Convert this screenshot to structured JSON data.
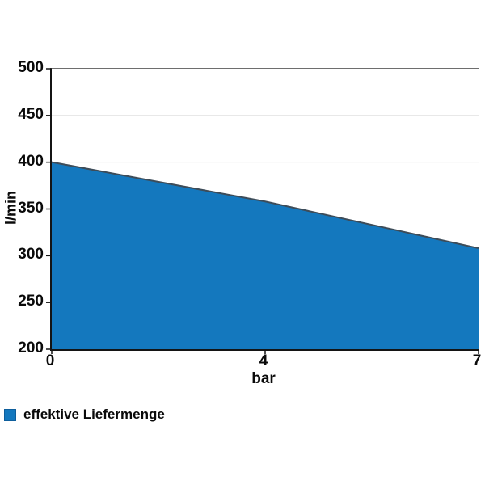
{
  "chart_data": {
    "type": "area",
    "title": "",
    "xlabel": "bar",
    "ylabel": "l/min",
    "xaxis_type": "category",
    "x": [
      0,
      4,
      7
    ],
    "x_tick_labels": [
      "0",
      "4",
      "7"
    ],
    "y_ticks": [
      200,
      250,
      300,
      350,
      400,
      450,
      500
    ],
    "ylim": [
      200,
      500
    ],
    "grid": "horizontal",
    "legend_position": "bottom-left",
    "series": [
      {
        "name": "effektive Liefermenge",
        "x": [
          0,
          4,
          7
        ],
        "values": [
          400,
          358,
          308
        ]
      }
    ],
    "colors": {
      "area_fill": "#1478BE",
      "area_line": "#3D4C59",
      "grid": "#D9D9D9",
      "axis": "#141414",
      "text": "#0A0A0A"
    }
  },
  "legend": {
    "items": [
      {
        "label": "effektive Liefermenge",
        "swatch_color": "#1478BE"
      }
    ]
  }
}
